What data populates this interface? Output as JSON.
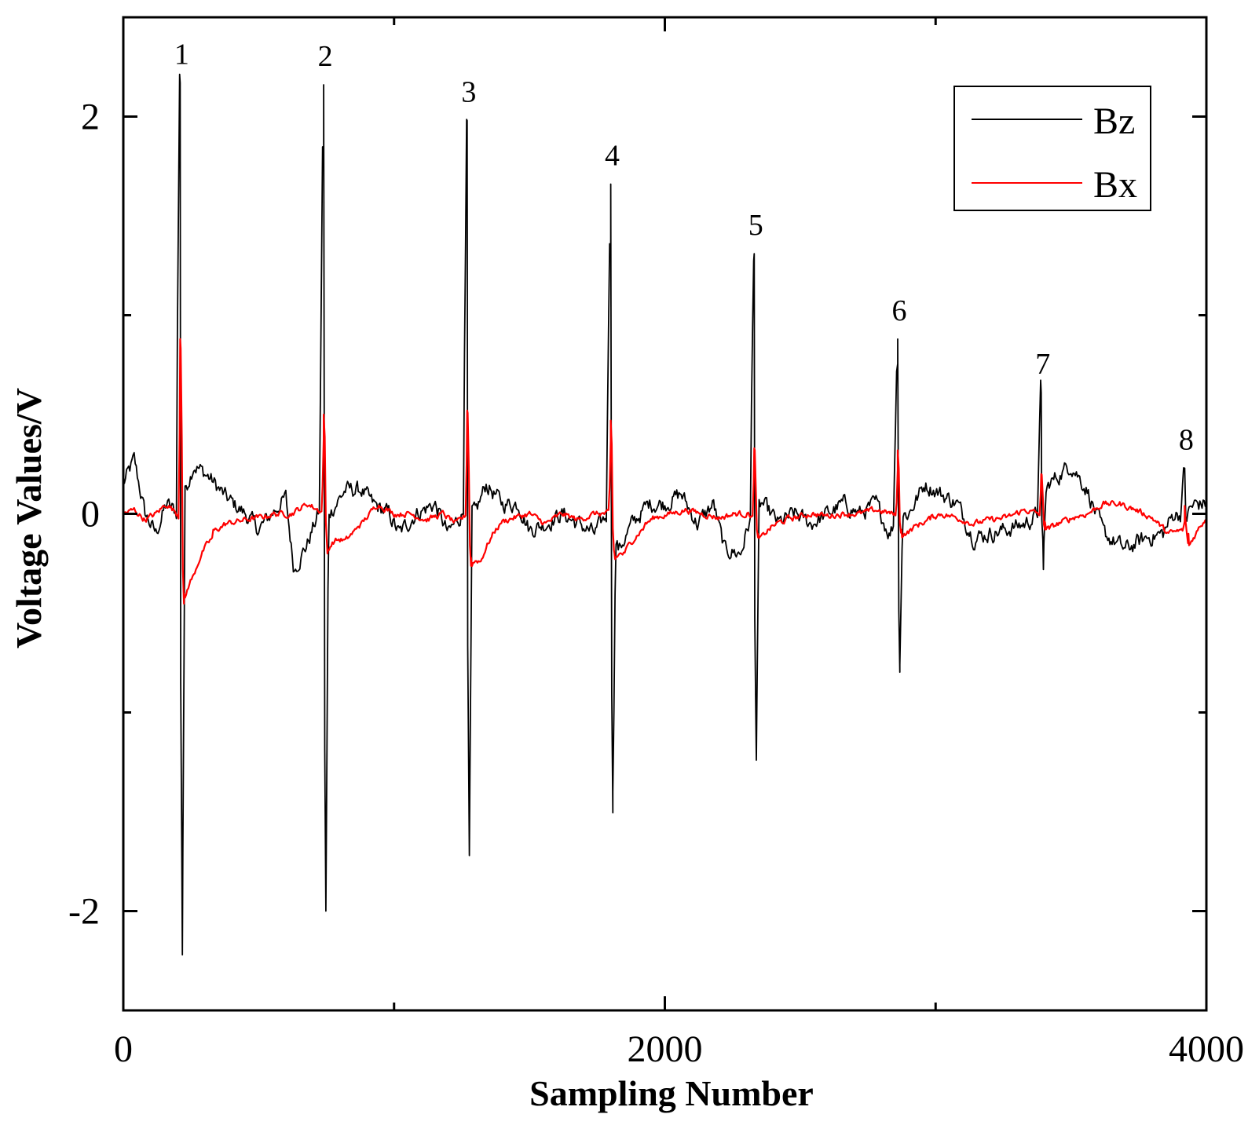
{
  "chart_data": {
    "type": "line",
    "title": "",
    "xlabel": "Sampling Number",
    "ylabel": "Voltage Values/V",
    "xlim": [
      0,
      4000
    ],
    "ylim": [
      -2.5,
      2.5
    ],
    "x_major_ticks": [
      0,
      2000,
      4000
    ],
    "x_tick_labels": [
      "0",
      "2000",
      "4000"
    ],
    "x_minor_ticks": [
      1000,
      3000
    ],
    "y_major_ticks": [
      2,
      0,
      -2
    ],
    "y_tick_labels": [
      "2",
      "0",
      "-2"
    ],
    "y_minor_ticks": [
      1,
      -1
    ],
    "grid": false,
    "legend": {
      "position": "top-right",
      "entries": [
        {
          "name": "Bz",
          "color": "#000000"
        },
        {
          "name": "Bx",
          "color": "#ff0000"
        }
      ]
    },
    "peaks": [
      {
        "label": "1",
        "x": 210,
        "bz_max": 2.17,
        "bz_min": -2.22,
        "bx_max": 0.88,
        "bx_min": -0.4
      },
      {
        "label": "2",
        "x": 740,
        "bz_max": 2.16,
        "bz_min": -2.0,
        "bx_max": 0.5,
        "bx_min": -0.2
      },
      {
        "label": "3",
        "x": 1270,
        "bz_max": 1.98,
        "bz_min": -1.72,
        "bx_max": 0.52,
        "bx_min": -0.22
      },
      {
        "label": "4",
        "x": 1800,
        "bz_max": 1.66,
        "bz_min": -1.4,
        "bx_max": 0.47,
        "bx_min": -0.2
      },
      {
        "label": "5",
        "x": 2330,
        "bz_max": 1.31,
        "bz_min": -1.24,
        "bx_max": 0.33,
        "bx_min": -0.1
      },
      {
        "label": "6",
        "x": 2860,
        "bz_max": 0.88,
        "bz_min": -0.76,
        "bx_max": 0.32,
        "bx_min": -0.08
      },
      {
        "label": "7",
        "x": 3390,
        "bz_max": 0.61,
        "bz_min": -0.28,
        "bx_max": 0.2,
        "bx_min": -0.04
      },
      {
        "label": "8",
        "x": 3920,
        "bz_max": 0.23,
        "bz_min": -0.03,
        "bx_max": 0.04,
        "bx_min": -0.1
      }
    ],
    "series": [
      {
        "name": "Bz",
        "color": "#000000",
        "baseline": [
          [
            0,
            0.15
          ],
          [
            40,
            0.27
          ],
          [
            80,
            0.0
          ],
          [
            120,
            -0.1
          ],
          [
            160,
            0.05
          ],
          [
            200,
            0.0
          ],
          [
            260,
            0.25
          ],
          [
            320,
            0.18
          ],
          [
            380,
            0.08
          ],
          [
            450,
            0.0
          ],
          [
            500,
            -0.08
          ],
          [
            560,
            0.02
          ],
          [
            600,
            0.08
          ],
          [
            630,
            -0.28
          ],
          [
            680,
            -0.15
          ],
          [
            720,
            0.0
          ],
          [
            760,
            0.0
          ],
          [
            820,
            0.12
          ],
          [
            880,
            0.12
          ],
          [
            920,
            0.05
          ],
          [
            980,
            0.0
          ],
          [
            1020,
            -0.1
          ],
          [
            1080,
            0.0
          ],
          [
            1150,
            0.05
          ],
          [
            1200,
            -0.1
          ],
          [
            1250,
            0.0
          ],
          [
            1300,
            0.0
          ],
          [
            1340,
            0.15
          ],
          [
            1400,
            0.05
          ],
          [
            1460,
            0.05
          ],
          [
            1500,
            -0.08
          ],
          [
            1560,
            -0.05
          ],
          [
            1620,
            0.0
          ],
          [
            1680,
            -0.05
          ],
          [
            1740,
            -0.1
          ],
          [
            1790,
            0.0
          ],
          [
            1830,
            -0.18
          ],
          [
            1880,
            -0.05
          ],
          [
            1940,
            0.05
          ],
          [
            2000,
            0.05
          ],
          [
            2060,
            0.1
          ],
          [
            2120,
            -0.05
          ],
          [
            2180,
            0.05
          ],
          [
            2220,
            -0.18
          ],
          [
            2280,
            -0.2
          ],
          [
            2310,
            -0.05
          ],
          [
            2360,
            0.05
          ],
          [
            2420,
            -0.05
          ],
          [
            2480,
            0.0
          ],
          [
            2540,
            -0.05
          ],
          [
            2600,
            0.0
          ],
          [
            2660,
            0.05
          ],
          [
            2720,
            0.0
          ],
          [
            2780,
            0.05
          ],
          [
            2830,
            -0.1
          ],
          [
            2860,
            0.0
          ],
          [
            2900,
            0.0
          ],
          [
            2960,
            0.15
          ],
          [
            3020,
            0.1
          ],
          [
            3080,
            0.05
          ],
          [
            3140,
            -0.12
          ],
          [
            3200,
            -0.1
          ],
          [
            3260,
            -0.08
          ],
          [
            3330,
            -0.05
          ],
          [
            3380,
            0.0
          ],
          [
            3420,
            0.15
          ],
          [
            3500,
            0.25
          ],
          [
            3560,
            0.12
          ],
          [
            3620,
            -0.1
          ],
          [
            3700,
            -0.18
          ],
          [
            3780,
            -0.12
          ],
          [
            3840,
            -0.1
          ],
          [
            3880,
            0.0
          ],
          [
            3920,
            0.0
          ],
          [
            3960,
            0.05
          ],
          [
            4000,
            0.05
          ]
        ]
      },
      {
        "name": "Bx",
        "color": "#ff0000",
        "baseline": [
          [
            0,
            0.0
          ],
          [
            40,
            0.02
          ],
          [
            80,
            -0.03
          ],
          [
            120,
            0.0
          ],
          [
            160,
            0.05
          ],
          [
            200,
            0.0
          ],
          [
            260,
            -0.15
          ],
          [
            320,
            -0.1
          ],
          [
            380,
            -0.05
          ],
          [
            450,
            -0.03
          ],
          [
            500,
            -0.02
          ],
          [
            560,
            0.0
          ],
          [
            620,
            0.0
          ],
          [
            680,
            0.05
          ],
          [
            720,
            0.02
          ],
          [
            760,
            0.0
          ],
          [
            820,
            -0.1
          ],
          [
            880,
            -0.05
          ],
          [
            940,
            0.05
          ],
          [
            1000,
            0.0
          ],
          [
            1060,
            0.0
          ],
          [
            1120,
            -0.03
          ],
          [
            1180,
            0.0
          ],
          [
            1230,
            -0.05
          ],
          [
            1270,
            0.0
          ],
          [
            1320,
            -0.15
          ],
          [
            1380,
            -0.05
          ],
          [
            1440,
            -0.02
          ],
          [
            1500,
            0.0
          ],
          [
            1560,
            -0.05
          ],
          [
            1620,
            0.0
          ],
          [
            1680,
            -0.03
          ],
          [
            1740,
            0.0
          ],
          [
            1800,
            0.0
          ],
          [
            1850,
            -0.12
          ],
          [
            1900,
            -0.08
          ],
          [
            1960,
            -0.02
          ],
          [
            2020,
            0.0
          ],
          [
            2080,
            0.02
          ],
          [
            2140,
            0.0
          ],
          [
            2200,
            -0.02
          ],
          [
            2260,
            0.0
          ],
          [
            2310,
            0.0
          ],
          [
            2360,
            -0.05
          ],
          [
            2420,
            -0.03
          ],
          [
            2480,
            -0.02
          ],
          [
            2540,
            0.0
          ],
          [
            2600,
            -0.01
          ],
          [
            2660,
            0.0
          ],
          [
            2720,
            0.0
          ],
          [
            2780,
            0.02
          ],
          [
            2840,
            0.0
          ],
          [
            2900,
            -0.05
          ],
          [
            2960,
            -0.03
          ],
          [
            3020,
            0.0
          ],
          [
            3080,
            -0.02
          ],
          [
            3140,
            -0.05
          ],
          [
            3200,
            -0.03
          ],
          [
            3260,
            -0.02
          ],
          [
            3330,
            0.02
          ],
          [
            3380,
            0.0
          ],
          [
            3420,
            -0.05
          ],
          [
            3500,
            -0.02
          ],
          [
            3560,
            0.0
          ],
          [
            3620,
            0.05
          ],
          [
            3680,
            0.05
          ],
          [
            3740,
            0.02
          ],
          [
            3800,
            -0.02
          ],
          [
            3860,
            -0.1
          ],
          [
            3920,
            -0.08
          ],
          [
            3960,
            -0.05
          ],
          [
            4000,
            0.0
          ]
        ]
      }
    ]
  }
}
